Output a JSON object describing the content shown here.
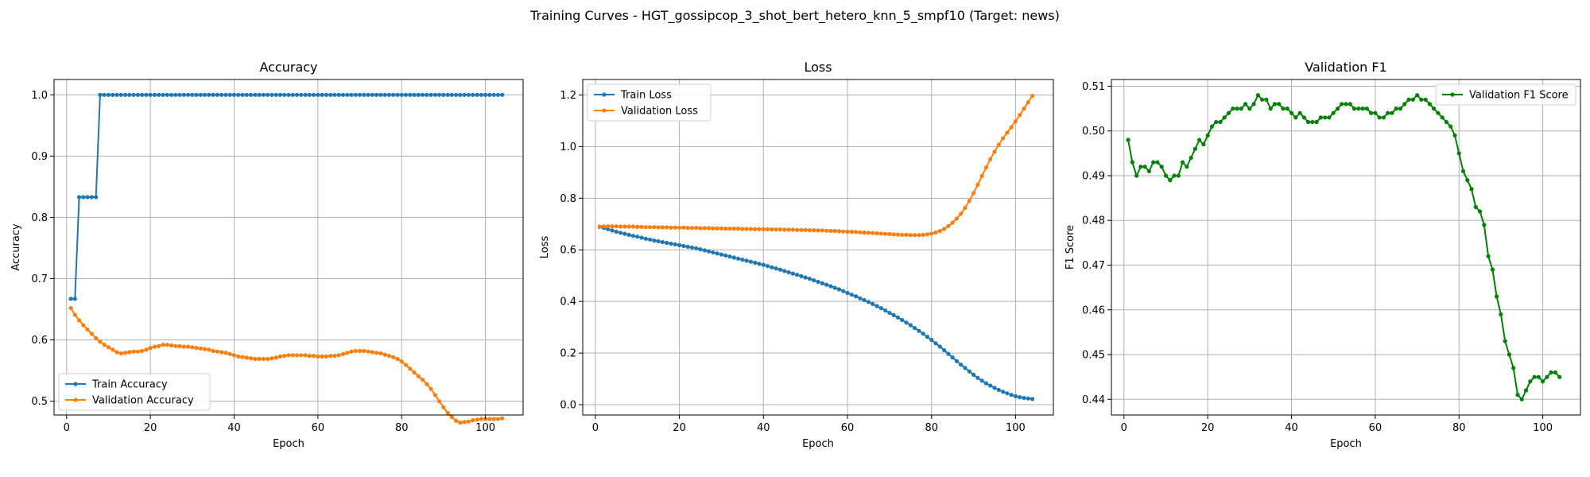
{
  "figure_title": "Training Curves - HGT_gossipcop_3_shot_bert_hetero_knn_5_smpf10 (Target: news)",
  "chart_data": [
    {
      "type": "line",
      "title": "Accuracy",
      "xlabel": "Epoch",
      "ylabel": "Accuracy",
      "xlim": [
        -3,
        109
      ],
      "ylim": [
        0.4775,
        1.025
      ],
      "xticks": [
        0,
        20,
        40,
        60,
        80,
        100
      ],
      "yticks": [
        0.5,
        0.6,
        0.7,
        0.8,
        0.9,
        1.0
      ],
      "ytick_labels": [
        "0.5",
        "0.6",
        "0.7",
        "0.8",
        "0.9",
        "1.0"
      ],
      "grid": true,
      "legend_position": "lower-left",
      "series": [
        {
          "name": "Train Accuracy",
          "color": "#1f77b4",
          "x_start": 1,
          "x_step": 1,
          "values": [
            0.667,
            0.667,
            0.833,
            0.833,
            0.833,
            0.833,
            0.833,
            1.0,
            1.0,
            1.0,
            1.0,
            1.0,
            1.0,
            1.0,
            1.0,
            1.0,
            1.0,
            1.0,
            1.0,
            1.0,
            1.0,
            1.0,
            1.0,
            1.0,
            1.0,
            1.0,
            1.0,
            1.0,
            1.0,
            1.0,
            1.0,
            1.0,
            1.0,
            1.0,
            1.0,
            1.0,
            1.0,
            1.0,
            1.0,
            1.0,
            1.0,
            1.0,
            1.0,
            1.0,
            1.0,
            1.0,
            1.0,
            1.0,
            1.0,
            1.0,
            1.0,
            1.0,
            1.0,
            1.0,
            1.0,
            1.0,
            1.0,
            1.0,
            1.0,
            1.0,
            1.0,
            1.0,
            1.0,
            1.0,
            1.0,
            1.0,
            1.0,
            1.0,
            1.0,
            1.0,
            1.0,
            1.0,
            1.0,
            1.0,
            1.0,
            1.0,
            1.0,
            1.0,
            1.0,
            1.0,
            1.0,
            1.0,
            1.0,
            1.0,
            1.0,
            1.0,
            1.0,
            1.0,
            1.0,
            1.0,
            1.0,
            1.0,
            1.0,
            1.0,
            1.0,
            1.0,
            1.0,
            1.0,
            1.0,
            1.0,
            1.0,
            1.0,
            1.0,
            1.0
          ]
        },
        {
          "name": "Validation Accuracy",
          "color": "#ff7f0e",
          "x_start": 1,
          "x_step": 1,
          "values": [
            0.652,
            0.641,
            0.632,
            0.624,
            0.617,
            0.61,
            0.603,
            0.597,
            0.592,
            0.588,
            0.584,
            0.58,
            0.578,
            0.579,
            0.58,
            0.581,
            0.581,
            0.582,
            0.584,
            0.587,
            0.589,
            0.59,
            0.592,
            0.592,
            0.591,
            0.59,
            0.59,
            0.589,
            0.589,
            0.588,
            0.587,
            0.586,
            0.585,
            0.584,
            0.582,
            0.581,
            0.58,
            0.579,
            0.577,
            0.575,
            0.573,
            0.572,
            0.571,
            0.57,
            0.569,
            0.569,
            0.569,
            0.569,
            0.57,
            0.571,
            0.573,
            0.574,
            0.575,
            0.575,
            0.575,
            0.575,
            0.575,
            0.574,
            0.574,
            0.573,
            0.573,
            0.573,
            0.574,
            0.574,
            0.575,
            0.577,
            0.579,
            0.581,
            0.582,
            0.582,
            0.582,
            0.581,
            0.58,
            0.579,
            0.578,
            0.576,
            0.574,
            0.572,
            0.569,
            0.565,
            0.559,
            0.553,
            0.547,
            0.541,
            0.535,
            0.528,
            0.52,
            0.51,
            0.5,
            0.49,
            0.481,
            0.474,
            0.468,
            0.465,
            0.466,
            0.467,
            0.469,
            0.47,
            0.471,
            0.471,
            0.471,
            0.471,
            0.471,
            0.472
          ]
        }
      ]
    },
    {
      "type": "line",
      "title": "Loss",
      "xlabel": "Epoch",
      "ylabel": "Loss",
      "xlim": [
        -3,
        109
      ],
      "ylim": [
        -0.04,
        1.26
      ],
      "xticks": [
        0,
        20,
        40,
        60,
        80,
        100
      ],
      "yticks": [
        0.0,
        0.2,
        0.4,
        0.6,
        0.8,
        1.0,
        1.2
      ],
      "ytick_labels": [
        "0.0",
        "0.2",
        "0.4",
        "0.6",
        "0.8",
        "1.0",
        "1.2"
      ],
      "grid": true,
      "legend_position": "upper-left",
      "series": [
        {
          "name": "Train Loss",
          "color": "#1f77b4",
          "x_start": 1,
          "x_step": 1,
          "values": [
            0.689,
            0.685,
            0.68,
            0.675,
            0.67,
            0.666,
            0.662,
            0.658,
            0.654,
            0.651,
            0.647,
            0.643,
            0.64,
            0.636,
            0.633,
            0.63,
            0.627,
            0.624,
            0.621,
            0.618,
            0.615,
            0.612,
            0.609,
            0.606,
            0.602,
            0.598,
            0.594,
            0.59,
            0.586,
            0.582,
            0.578,
            0.574,
            0.57,
            0.566,
            0.562,
            0.558,
            0.554,
            0.55,
            0.546,
            0.542,
            0.537,
            0.532,
            0.528,
            0.523,
            0.518,
            0.513,
            0.508,
            0.503,
            0.498,
            0.493,
            0.488,
            0.482,
            0.476,
            0.47,
            0.465,
            0.459,
            0.453,
            0.447,
            0.44,
            0.433,
            0.426,
            0.42,
            0.412,
            0.405,
            0.398,
            0.39,
            0.382,
            0.374,
            0.365,
            0.356,
            0.347,
            0.338,
            0.328,
            0.318,
            0.308,
            0.297,
            0.286,
            0.275,
            0.263,
            0.251,
            0.238,
            0.225,
            0.211,
            0.197,
            0.183,
            0.169,
            0.155,
            0.142,
            0.129,
            0.116,
            0.104,
            0.093,
            0.083,
            0.074,
            0.065,
            0.057,
            0.05,
            0.044,
            0.038,
            0.033,
            0.029,
            0.026,
            0.024,
            0.022
          ]
        },
        {
          "name": "Validation Loss",
          "color": "#ff7f0e",
          "x_start": 1,
          "x_step": 1,
          "values": [
            0.69,
            0.691,
            0.691,
            0.691,
            0.691,
            0.69,
            0.69,
            0.69,
            0.69,
            0.689,
            0.689,
            0.688,
            0.688,
            0.688,
            0.687,
            0.687,
            0.687,
            0.686,
            0.686,
            0.686,
            0.686,
            0.685,
            0.685,
            0.685,
            0.684,
            0.684,
            0.684,
            0.683,
            0.683,
            0.683,
            0.682,
            0.682,
            0.682,
            0.682,
            0.681,
            0.681,
            0.681,
            0.68,
            0.68,
            0.68,
            0.68,
            0.679,
            0.679,
            0.679,
            0.678,
            0.678,
            0.678,
            0.677,
            0.677,
            0.677,
            0.676,
            0.676,
            0.675,
            0.675,
            0.674,
            0.673,
            0.673,
            0.672,
            0.671,
            0.67,
            0.67,
            0.669,
            0.668,
            0.667,
            0.666,
            0.665,
            0.664,
            0.663,
            0.662,
            0.661,
            0.66,
            0.659,
            0.658,
            0.658,
            0.657,
            0.657,
            0.657,
            0.658,
            0.66,
            0.663,
            0.667,
            0.673,
            0.681,
            0.692,
            0.705,
            0.721,
            0.74,
            0.763,
            0.79,
            0.82,
            0.852,
            0.886,
            0.919,
            0.951,
            0.98,
            1.007,
            1.032,
            1.054,
            1.075,
            1.098,
            1.122,
            1.147,
            1.172,
            1.197
          ]
        }
      ]
    },
    {
      "type": "line",
      "title": "Validation F1",
      "xlabel": "Epoch",
      "ylabel": "F1 Score",
      "xlim": [
        -3,
        109
      ],
      "ylim": [
        0.4365,
        0.5115
      ],
      "xticks": [
        0,
        20,
        40,
        60,
        80,
        100
      ],
      "yticks": [
        0.44,
        0.45,
        0.46,
        0.47,
        0.48,
        0.49,
        0.5,
        0.51
      ],
      "ytick_labels": [
        "0.44",
        "0.45",
        "0.46",
        "0.47",
        "0.48",
        "0.49",
        "0.50",
        "0.51"
      ],
      "grid": true,
      "legend_position": "upper-right",
      "series": [
        {
          "name": "Validation F1 Score",
          "color": "#008000",
          "x_start": 1,
          "x_step": 1,
          "values": [
            0.498,
            0.493,
            0.49,
            0.492,
            0.492,
            0.491,
            0.493,
            0.493,
            0.492,
            0.49,
            0.489,
            0.49,
            0.49,
            0.493,
            0.492,
            0.494,
            0.496,
            0.498,
            0.497,
            0.499,
            0.501,
            0.502,
            0.502,
            0.503,
            0.504,
            0.505,
            0.505,
            0.505,
            0.506,
            0.505,
            0.506,
            0.508,
            0.507,
            0.507,
            0.505,
            0.506,
            0.506,
            0.505,
            0.505,
            0.504,
            0.503,
            0.504,
            0.503,
            0.502,
            0.502,
            0.502,
            0.503,
            0.503,
            0.503,
            0.504,
            0.505,
            0.506,
            0.506,
            0.506,
            0.505,
            0.505,
            0.505,
            0.505,
            0.504,
            0.504,
            0.503,
            0.503,
            0.504,
            0.504,
            0.505,
            0.505,
            0.506,
            0.507,
            0.507,
            0.508,
            0.507,
            0.507,
            0.506,
            0.505,
            0.504,
            0.503,
            0.502,
            0.501,
            0.499,
            0.495,
            0.491,
            0.489,
            0.487,
            0.483,
            0.482,
            0.479,
            0.472,
            0.469,
            0.463,
            0.459,
            0.453,
            0.45,
            0.447,
            0.441,
            0.44,
            0.442,
            0.444,
            0.445,
            0.445,
            0.444,
            0.445,
            0.446,
            0.446,
            0.445
          ]
        }
      ]
    }
  ]
}
